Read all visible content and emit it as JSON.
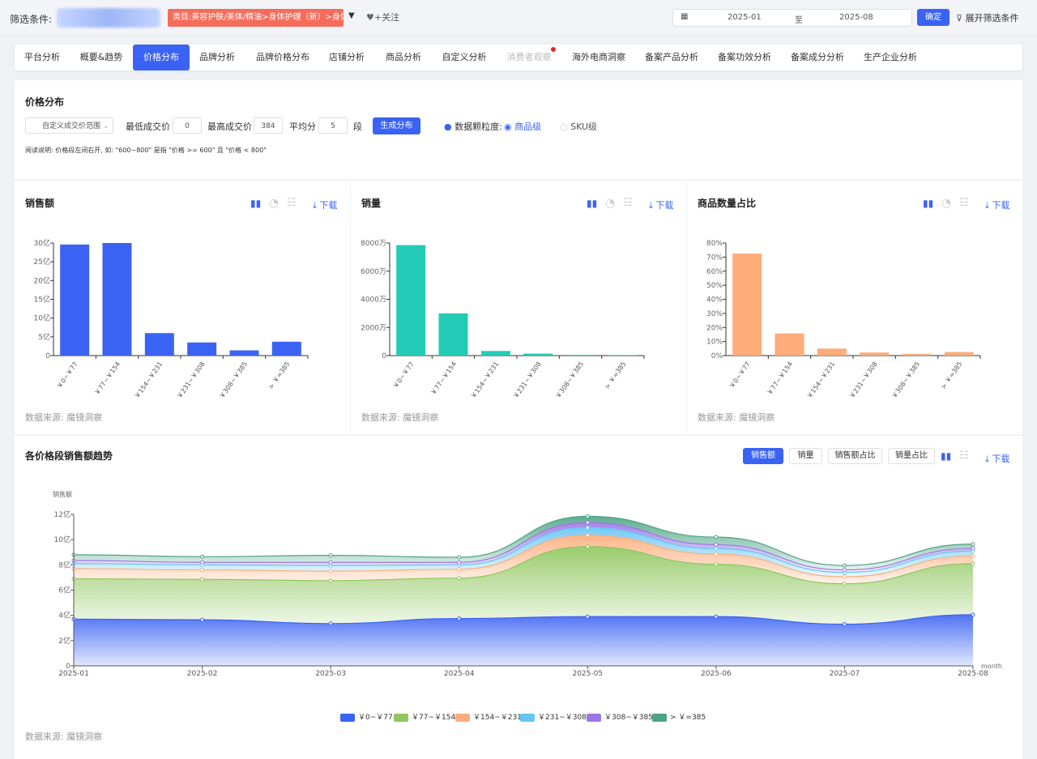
{
  "filter": {
    "label": "筛选条件:",
    "category": "类目:美容护肤/美体/精油>身体护理（新）>身体乳/霜",
    "follow": "+关注",
    "date_from": "2025-01",
    "date_sep": "至",
    "date_to": "2025-08",
    "confirm": "确定",
    "expand": "展开筛选条件"
  },
  "tabs": [
    "平台分析",
    "概要&趋势",
    "价格分布",
    "品牌分析",
    "品牌价格分布",
    "店铺分析",
    "商品分析",
    "自定义分析",
    "消费者观察",
    "海外电商洞察",
    "备案产品分析",
    "备案功效分析",
    "备案成分分析",
    "生产企业分析"
  ],
  "price": {
    "title": "价格分布",
    "range_select": "自定义成交价范围",
    "min_label": "最低成交价",
    "min_value": "0",
    "max_label": "最高成交价",
    "max_value": "384",
    "avg_label": "平均分",
    "avg_value": "5",
    "seg": "段",
    "generate": "生成分布",
    "granularity": "数据颗粒度:",
    "opt1": "商品级",
    "opt2": "SKU级",
    "note": "阅读说明: 价格段左闭右开, 如: \"600~800\" 是指 \"价格 >= 600\" 且 \"价格 < 800\""
  },
  "common": {
    "download": "下载",
    "source": "数据来源: 魔镜洞察"
  },
  "trend": {
    "title": "各价格段销售额趋势",
    "btn1": "销售额",
    "btn2": "销量",
    "btn3": "销售额占比",
    "btn4": "销量占比"
  },
  "chart_data": [
    {
      "type": "bar",
      "title": "销售额",
      "categories": [
        "￥0~￥77",
        "￥77~￥154",
        "￥154~￥231",
        "￥231~￥308",
        "￥308~￥385",
        "> ￥=385"
      ],
      "values": [
        29.6,
        30.0,
        6.0,
        3.5,
        1.4,
        3.7
      ],
      "ylim": [
        0,
        30
      ],
      "yticks": [
        "0",
        "5亿",
        "10亿",
        "15亿",
        "20亿",
        "25亿",
        "30亿"
      ],
      "color": "#3b63f3"
    },
    {
      "type": "bar",
      "title": "销量",
      "categories": [
        "￥0~￥77",
        "￥77~￥154",
        "￥154~￥231",
        "￥231~￥308",
        "￥308~￥385",
        "> ￥=385"
      ],
      "values": [
        7850,
        3000,
        330,
        140,
        50,
        40
      ],
      "ylim": [
        0,
        8000
      ],
      "yticks": [
        "0",
        "2000万",
        "4000万",
        "6000万",
        "8000万"
      ],
      "color": "#22ccb6"
    },
    {
      "type": "bar",
      "title": "商品数量占比",
      "categories": [
        "￥0~￥77",
        "￥77~￥154",
        "￥154~￥231",
        "￥231~￥308",
        "￥308~￥385",
        "> ￥=385"
      ],
      "values": [
        72.5,
        15.8,
        5.0,
        2.2,
        1.2,
        2.5
      ],
      "ylim": [
        0,
        80
      ],
      "yticks": [
        "0%",
        "10%",
        "20%",
        "30%",
        "40%",
        "50%",
        "60%",
        "70%",
        "80%"
      ],
      "color": "#fdac7a"
    },
    {
      "type": "area",
      "ylabel": "销售额",
      "xlabel": "month",
      "x": [
        "2025-01",
        "2025-02",
        "2025-03",
        "2025-04",
        "2025-05",
        "2025-06",
        "2025-07",
        "2025-08"
      ],
      "yticks": [
        "0",
        "2亿",
        "4亿",
        "6亿",
        "8亿",
        "10亿",
        "12亿"
      ],
      "ylim": [
        0,
        12
      ],
      "series": [
        {
          "name": "￥0~￥77",
          "color": "#3b63f3",
          "values": [
            3.7,
            3.65,
            3.35,
            3.75,
            3.9,
            3.9,
            3.3,
            4.05
          ]
        },
        {
          "name": "￥77~￥154",
          "color": "#8fc75d",
          "values": [
            3.2,
            3.2,
            3.4,
            3.2,
            5.55,
            4.15,
            3.2,
            4.05
          ]
        },
        {
          "name": "￥154~￥231",
          "color": "#fdac7a",
          "values": [
            0.8,
            0.75,
            0.75,
            0.7,
            0.9,
            0.8,
            0.55,
            0.6
          ]
        },
        {
          "name": "￥231~￥308",
          "color": "#66c5f4",
          "values": [
            0.4,
            0.4,
            0.45,
            0.35,
            0.6,
            0.45,
            0.35,
            0.4
          ]
        },
        {
          "name": "￥308~￥385",
          "color": "#9c78e6",
          "values": [
            0.25,
            0.2,
            0.25,
            0.2,
            0.4,
            0.3,
            0.2,
            0.2
          ]
        },
        {
          "name": "> ￥=385",
          "color": "#4ea385",
          "values": [
            0.45,
            0.45,
            0.55,
            0.4,
            0.5,
            0.6,
            0.35,
            0.35
          ]
        }
      ]
    }
  ]
}
